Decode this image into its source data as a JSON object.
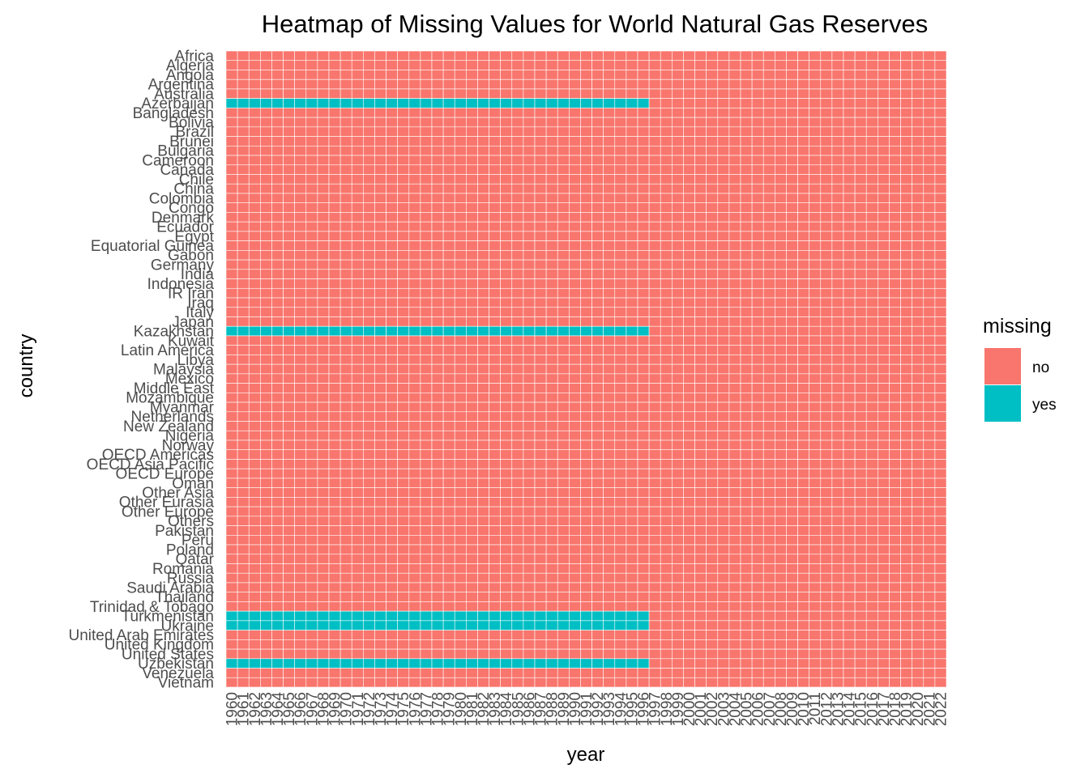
{
  "chart_data": {
    "type": "heatmap",
    "title": "Heatmap of Missing Values for World Natural Gas Reserves",
    "xlabel": "year",
    "ylabel": "country",
    "x": [
      1960,
      1961,
      1962,
      1963,
      1964,
      1965,
      1966,
      1967,
      1968,
      1969,
      1970,
      1971,
      1972,
      1973,
      1974,
      1975,
      1976,
      1977,
      1978,
      1979,
      1980,
      1981,
      1982,
      1983,
      1984,
      1985,
      1986,
      1987,
      1988,
      1989,
      1990,
      1991,
      1992,
      1993,
      1994,
      1995,
      1996,
      1997,
      1998,
      1999,
      2000,
      2001,
      2002,
      2003,
      2004,
      2005,
      2006,
      2007,
      2008,
      2009,
      2010,
      2011,
      2012,
      2013,
      2014,
      2015,
      2016,
      2017,
      2018,
      2019,
      2020,
      2021,
      2022
    ],
    "y": [
      "Africa",
      "Algeria",
      "Angola",
      "Argentina",
      "Australia",
      "Azerbaijan",
      "Bangladesh",
      "Bolivia",
      "Brazil",
      "Brunei",
      "Bulgaria",
      "Cameroon",
      "Canada",
      "Chile",
      "China",
      "Colombia",
      "Congo",
      "Denmark",
      "Ecuador",
      "Egypt",
      "Equatorial Guinea",
      "Gabon",
      "Germany",
      "India",
      "Indonesia",
      "IR Iran",
      "Iraq",
      "Italy",
      "Japan",
      "Kazakhstan",
      "Kuwait",
      "Latin America",
      "Libya",
      "Malaysia",
      "Mexico",
      "Middle East",
      "Mozambique",
      "Myanmar",
      "Netherlands",
      "New Zealand",
      "Nigeria",
      "Norway",
      "OECD Americas",
      "OECD Asia Pacific",
      "OECD Europe",
      "Oman",
      "Other Asia",
      "Other Eurasia",
      "Other Europe",
      "Others",
      "Pakistan",
      "Peru",
      "Poland",
      "Qatar",
      "Romania",
      "Russia",
      "Saudi Arabia",
      "Thailand",
      "Trinidad & Tobago",
      "Turkmenistan",
      "Ukraine",
      "United Arab Emirates",
      "United Kingdom",
      "United States",
      "Uzbekistan",
      "Venezuela",
      "Vietnam"
    ],
    "missing_ranges": [
      {
        "country": "Azerbaijan",
        "from": 1960,
        "to": 1996
      },
      {
        "country": "Kazakhstan",
        "from": 1960,
        "to": 1996
      },
      {
        "country": "Turkmenistan",
        "from": 1960,
        "to": 1996
      },
      {
        "country": "Ukraine",
        "from": 1960,
        "to": 1996
      },
      {
        "country": "Uzbekistan",
        "from": 1960,
        "to": 1996
      }
    ],
    "legend": {
      "title": "missing",
      "position": "right",
      "entries": [
        {
          "label": "no",
          "color": "#F8766D"
        },
        {
          "label": "yes",
          "color": "#00BFC4"
        }
      ]
    },
    "grid": false
  },
  "colors": {
    "no": "#F8766D",
    "yes": "#00BFC4",
    "tile_border": "#ffffff"
  }
}
